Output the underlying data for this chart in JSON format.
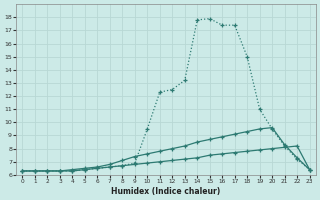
{
  "xlabel": "Humidex (Indice chaleur)",
  "xlim": [
    -0.5,
    23.5
  ],
  "ylim": [
    6,
    19
  ],
  "xticks": [
    0,
    1,
    2,
    3,
    4,
    5,
    6,
    7,
    8,
    9,
    10,
    11,
    12,
    13,
    14,
    15,
    16,
    17,
    18,
    19,
    20,
    21,
    22,
    23
  ],
  "yticks": [
    6,
    7,
    8,
    9,
    10,
    11,
    12,
    13,
    14,
    15,
    16,
    17,
    18
  ],
  "bg_color": "#cceae7",
  "grid_color": "#b8d8d5",
  "line_color": "#2d7a72",
  "curve_top_x": [
    0,
    1,
    2,
    3,
    4,
    5,
    6,
    7,
    8,
    9,
    10,
    11,
    12,
    13,
    14,
    15,
    16,
    17,
    18,
    19,
    20,
    21,
    22,
    23
  ],
  "curve_top_y": [
    6.3,
    6.3,
    6.3,
    6.3,
    6.3,
    6.4,
    6.5,
    6.6,
    6.7,
    6.9,
    9.5,
    12.3,
    12.5,
    13.2,
    17.8,
    17.9,
    17.4,
    17.4,
    15.0,
    11.0,
    9.5,
    8.2,
    7.2,
    6.4
  ],
  "curve_mid_x": [
    0,
    1,
    2,
    3,
    4,
    5,
    6,
    7,
    8,
    9,
    10,
    11,
    12,
    13,
    14,
    15,
    16,
    17,
    18,
    19,
    20,
    21,
    22,
    23
  ],
  "curve_mid_y": [
    6.3,
    6.3,
    6.3,
    6.3,
    6.4,
    6.5,
    6.6,
    6.8,
    7.1,
    7.4,
    7.6,
    7.8,
    8.0,
    8.2,
    8.5,
    8.7,
    8.9,
    9.1,
    9.3,
    9.5,
    9.6,
    8.3,
    7.3,
    6.4
  ],
  "curve_bot_x": [
    0,
    1,
    2,
    3,
    4,
    5,
    6,
    7,
    8,
    9,
    10,
    11,
    12,
    13,
    14,
    15,
    16,
    17,
    18,
    19,
    20,
    21,
    22,
    23
  ],
  "curve_bot_y": [
    6.3,
    6.3,
    6.3,
    6.3,
    6.3,
    6.4,
    6.5,
    6.6,
    6.7,
    6.8,
    6.9,
    7.0,
    7.1,
    7.2,
    7.3,
    7.5,
    7.6,
    7.7,
    7.8,
    7.9,
    8.0,
    8.1,
    8.2,
    6.4
  ]
}
